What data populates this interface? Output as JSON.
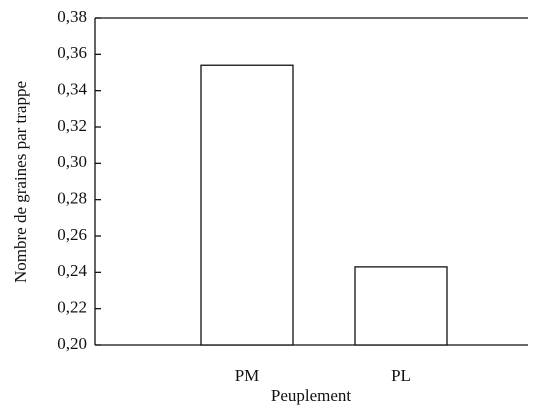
{
  "chart_data": {
    "type": "bar",
    "categories": [
      "PM",
      "PL"
    ],
    "values": [
      0.354,
      0.243
    ],
    "color": "#ffffff",
    "xlabel": "Peuplement",
    "ylabel": "Nombre de graines par trappe",
    "ylim": [
      0.2,
      0.38
    ],
    "yticks": [
      {
        "value": 0.2,
        "label": "0,20"
      },
      {
        "value": 0.22,
        "label": "0,22"
      },
      {
        "value": 0.24,
        "label": "0,24"
      },
      {
        "value": 0.26,
        "label": "0,26"
      },
      {
        "value": 0.28,
        "label": "0,28"
      },
      {
        "value": 0.3,
        "label": "0,30"
      },
      {
        "value": 0.32,
        "label": "0,32"
      },
      {
        "value": 0.34,
        "label": "0,34"
      },
      {
        "value": 0.36,
        "label": "0,36"
      },
      {
        "value": 0.38,
        "label": "0,38"
      }
    ],
    "grid": false
  }
}
